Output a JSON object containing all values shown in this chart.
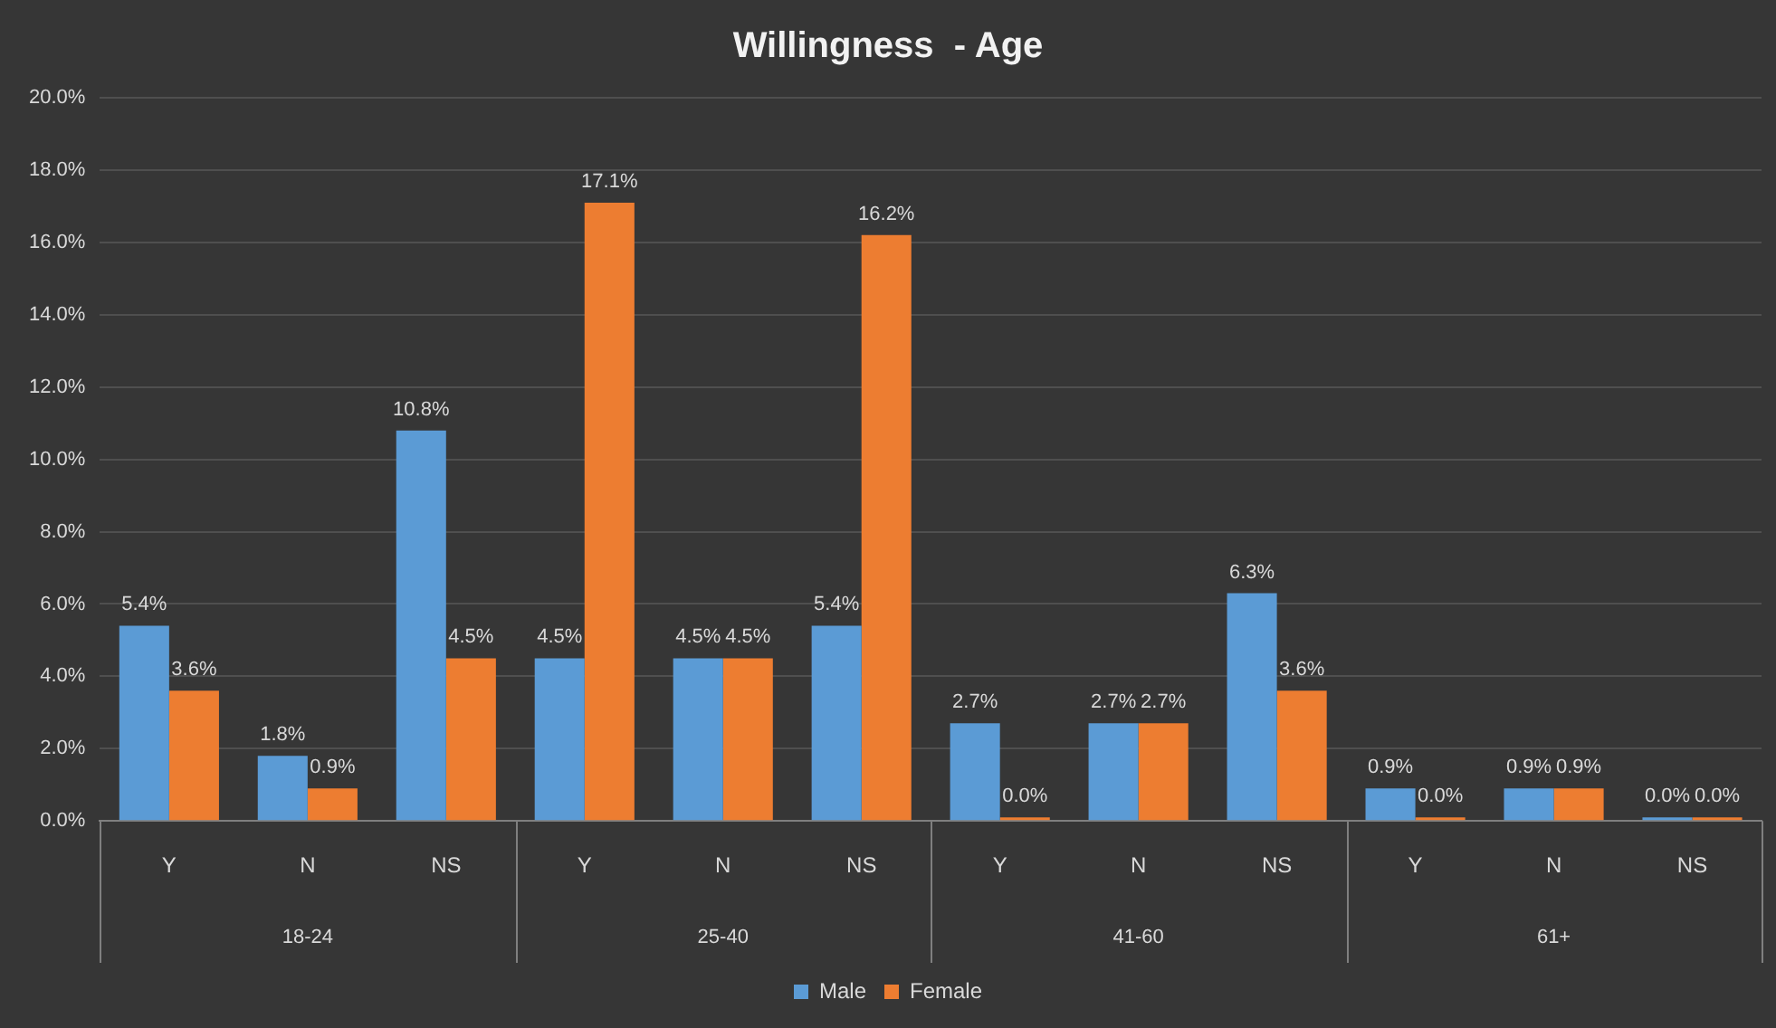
{
  "chart_data": {
    "type": "bar",
    "title": "Willingness  - Age",
    "categories": [
      "Y",
      "N",
      "NS",
      "Y",
      "N",
      "NS",
      "Y",
      "N",
      "NS",
      "Y",
      "N",
      "NS"
    ],
    "annotations": [
      "18-24",
      "25-40",
      "41-60",
      "61+"
    ],
    "series": [
      {
        "name": "Male",
        "color": "#5b9bd5",
        "values": [
          5.4,
          1.8,
          10.8,
          4.5,
          4.5,
          5.4,
          2.7,
          2.7,
          6.3,
          0.9,
          0.9,
          0.0
        ],
        "value_labels": [
          "5.4%",
          "1.8%",
          "10.8%",
          "4.5%",
          "4.5%",
          "5.4%",
          "2.7%",
          "2.7%",
          "6.3%",
          "0.9%",
          "0.9%",
          "0.0%"
        ]
      },
      {
        "name": "Female",
        "color": "#ed7d31",
        "values": [
          3.6,
          0.9,
          4.5,
          17.1,
          4.5,
          16.2,
          0.0,
          2.7,
          3.6,
          0.0,
          0.9,
          0.0
        ],
        "value_labels": [
          "3.6%",
          "0.9%",
          "4.5%",
          "17.1%",
          "4.5%",
          "16.2%",
          "0.0%",
          "2.7%",
          "3.6%",
          "0.0%",
          "0.9%",
          "0.0%"
        ]
      }
    ],
    "ylim": [
      0,
      20
    ],
    "yticks": [
      {
        "value": 0,
        "label": "0.0%"
      },
      {
        "value": 2,
        "label": "2.0%"
      },
      {
        "value": 4,
        "label": "4.0%"
      },
      {
        "value": 6,
        "label": "6.0%"
      },
      {
        "value": 8,
        "label": "8.0%"
      },
      {
        "value": 10,
        "label": "10.0%"
      },
      {
        "value": 12,
        "label": "12.0%"
      },
      {
        "value": 14,
        "label": "14.0%"
      },
      {
        "value": 16,
        "label": "16.0%"
      },
      {
        "value": 18,
        "label": "18.0%"
      },
      {
        "value": 20,
        "label": "20.0%"
      }
    ],
    "grid": "y",
    "legend": "bottom"
  }
}
